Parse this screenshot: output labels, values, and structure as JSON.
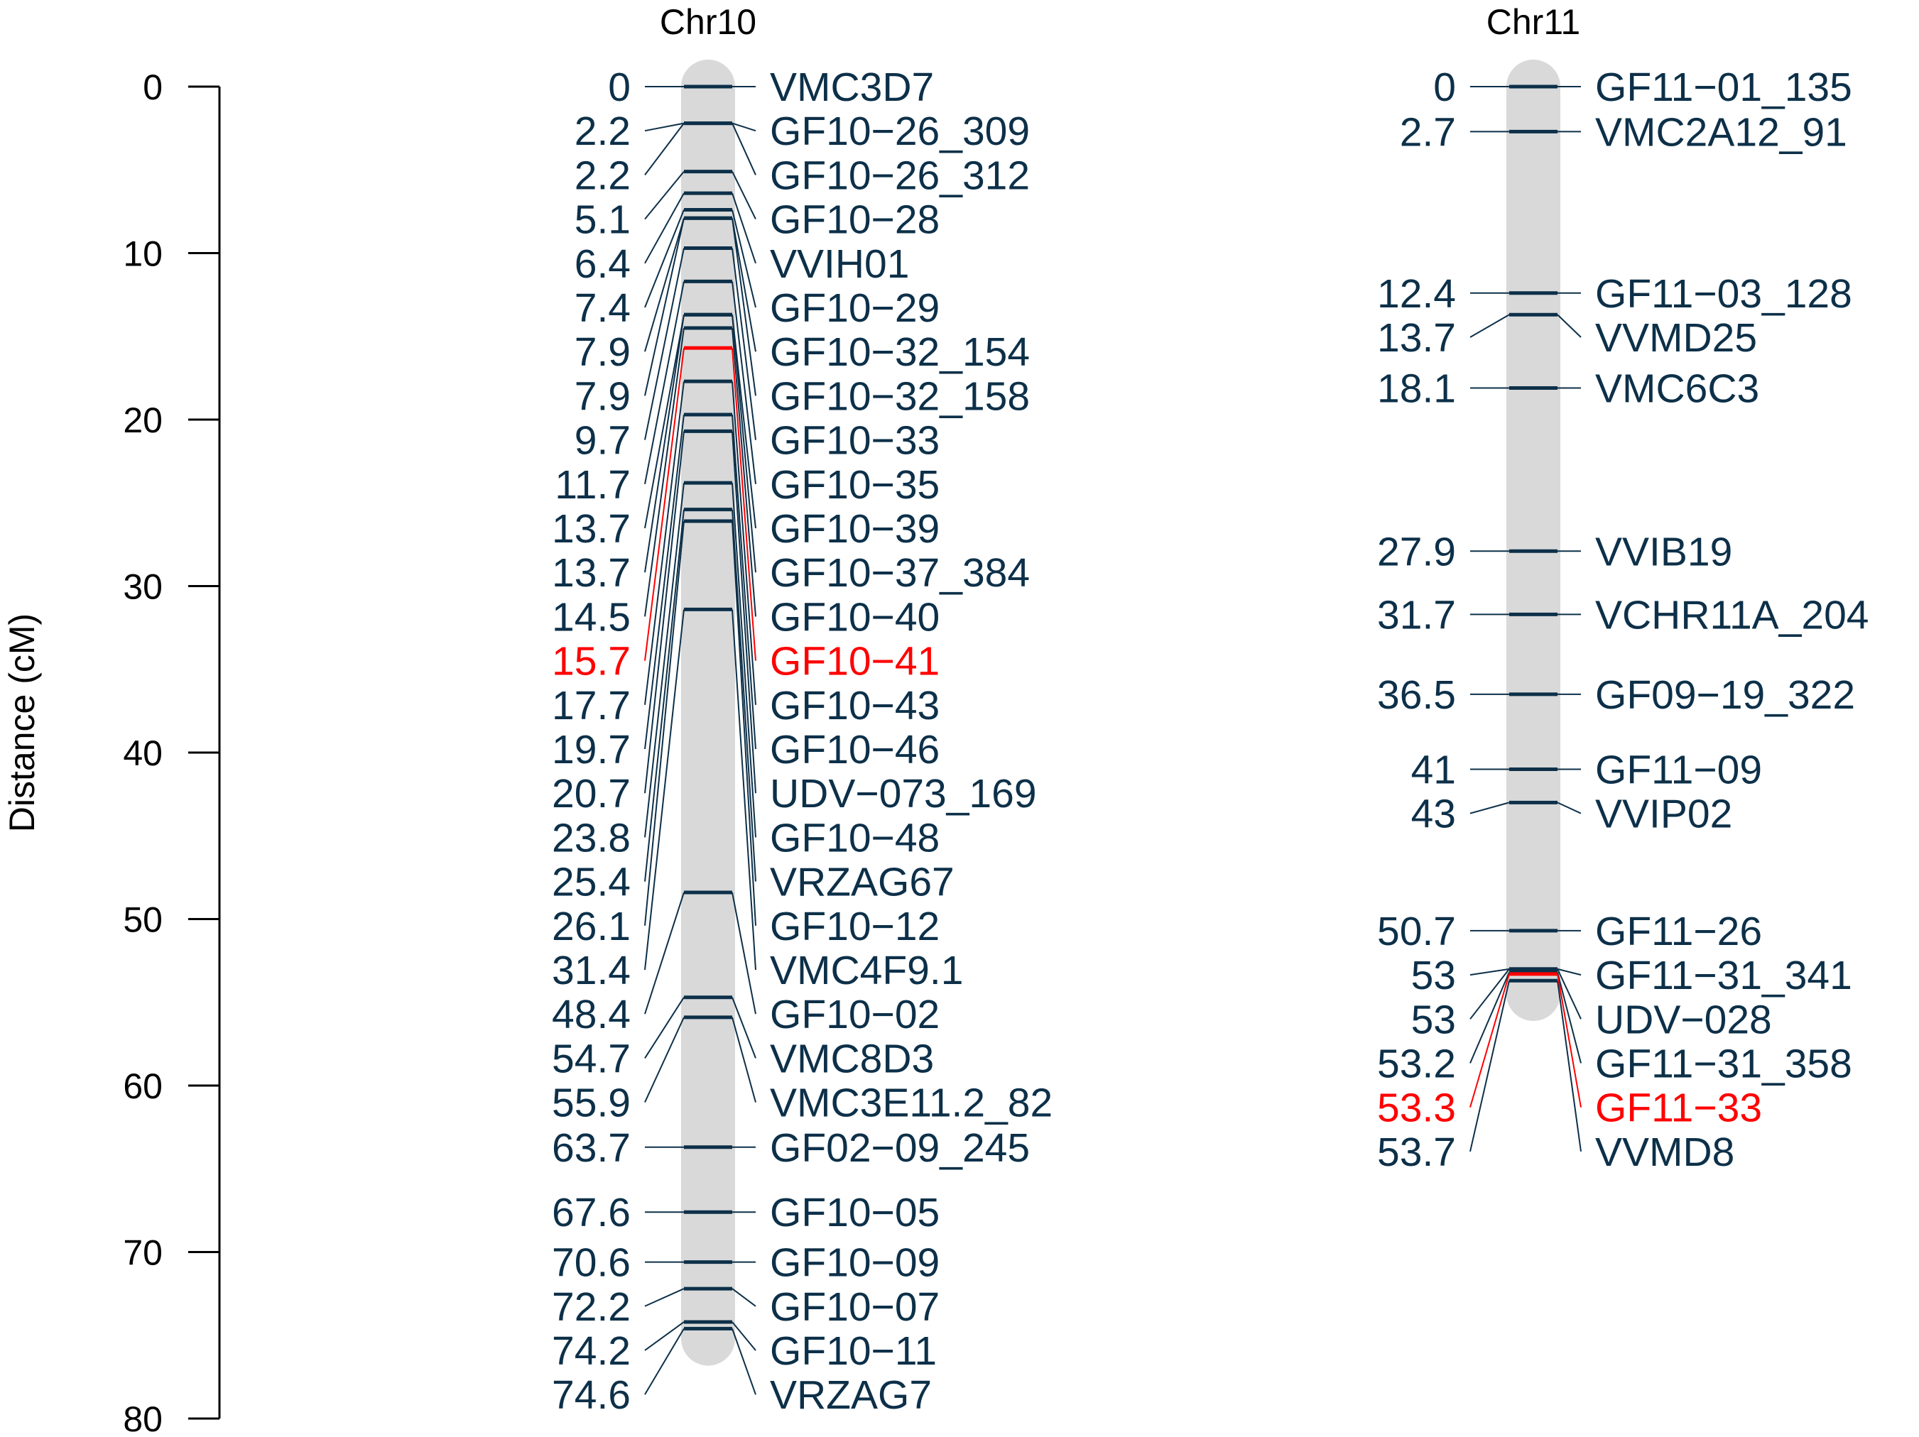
{
  "chart_data": {
    "type": "linkage-map",
    "ylabel": "Distance (cM)",
    "ylim": [
      0,
      80
    ],
    "yticks": [
      0,
      10,
      20,
      30,
      40,
      50,
      60,
      70,
      80
    ],
    "colors": {
      "marker": "#0d3049",
      "highlight": "#ff0000",
      "chromosome": "#d9d9d9",
      "axis": "#000000"
    },
    "chromosomes": [
      {
        "name": "Chr10",
        "length": 75.2,
        "markers": [
          {
            "pos": 0,
            "label": "0",
            "name": "VMC3D7"
          },
          {
            "pos": 2.2,
            "label": "2.2",
            "name": "GF10−26_309"
          },
          {
            "pos": 2.2,
            "label": "2.2",
            "name": "GF10−26_312"
          },
          {
            "pos": 5.1,
            "label": "5.1",
            "name": "GF10−28"
          },
          {
            "pos": 6.4,
            "label": "6.4",
            "name": "VVIH01"
          },
          {
            "pos": 7.4,
            "label": "7.4",
            "name": "GF10−29"
          },
          {
            "pos": 7.9,
            "label": "7.9",
            "name": "GF10−32_154"
          },
          {
            "pos": 7.9,
            "label": "7.9",
            "name": "GF10−32_158"
          },
          {
            "pos": 9.7,
            "label": "9.7",
            "name": "GF10−33"
          },
          {
            "pos": 11.7,
            "label": "11.7",
            "name": "GF10−35"
          },
          {
            "pos": 13.7,
            "label": "13.7",
            "name": "GF10−39"
          },
          {
            "pos": 13.7,
            "label": "13.7",
            "name": "GF10−37_384"
          },
          {
            "pos": 14.5,
            "label": "14.5",
            "name": "GF10−40"
          },
          {
            "pos": 15.7,
            "label": "15.7",
            "name": "GF10−41",
            "highlight": true
          },
          {
            "pos": 17.7,
            "label": "17.7",
            "name": "GF10−43"
          },
          {
            "pos": 19.7,
            "label": "19.7",
            "name": "GF10−46"
          },
          {
            "pos": 20.7,
            "label": "20.7",
            "name": "UDV−073_169"
          },
          {
            "pos": 23.8,
            "label": "23.8",
            "name": "GF10−48"
          },
          {
            "pos": 25.4,
            "label": "25.4",
            "name": "VRZAG67"
          },
          {
            "pos": 26.1,
            "label": "26.1",
            "name": "GF10−12"
          },
          {
            "pos": 31.4,
            "label": "31.4",
            "name": "VMC4F9.1"
          },
          {
            "pos": 48.4,
            "label": "48.4",
            "name": "GF10−02"
          },
          {
            "pos": 54.7,
            "label": "54.7",
            "name": "VMC8D3"
          },
          {
            "pos": 55.9,
            "label": "55.9",
            "name": "VMC3E11.2_82"
          },
          {
            "pos": 63.7,
            "label": "63.7",
            "name": "GF02−09_245"
          },
          {
            "pos": 67.6,
            "label": "67.6",
            "name": "GF10−05"
          },
          {
            "pos": 70.6,
            "label": "70.6",
            "name": "GF10−09"
          },
          {
            "pos": 72.2,
            "label": "72.2",
            "name": "GF10−07"
          },
          {
            "pos": 74.2,
            "label": "74.2",
            "name": "GF10−11"
          },
          {
            "pos": 74.6,
            "label": "74.6",
            "name": "VRZAG7"
          }
        ]
      },
      {
        "name": "Chr11",
        "length": 54.5,
        "markers": [
          {
            "pos": 0,
            "label": "0",
            "name": "GF11−01_135"
          },
          {
            "pos": 2.7,
            "label": "2.7",
            "name": "VMC2A12_91"
          },
          {
            "pos": 12.4,
            "label": "12.4",
            "name": "GF11−03_128"
          },
          {
            "pos": 13.7,
            "label": "13.7",
            "name": "VVMD25"
          },
          {
            "pos": 18.1,
            "label": "18.1",
            "name": "VMC6C3"
          },
          {
            "pos": 27.9,
            "label": "27.9",
            "name": "VVIB19"
          },
          {
            "pos": 31.7,
            "label": "31.7",
            "name": "VCHR11A_204"
          },
          {
            "pos": 36.5,
            "label": "36.5",
            "name": "GF09−19_322"
          },
          {
            "pos": 41,
            "label": "41",
            "name": "GF11−09"
          },
          {
            "pos": 43,
            "label": "43",
            "name": "VVIP02"
          },
          {
            "pos": 50.7,
            "label": "50.7",
            "name": "GF11−26"
          },
          {
            "pos": 53,
            "label": "53",
            "name": "GF11−31_341"
          },
          {
            "pos": 53,
            "label": "53",
            "name": "UDV−028"
          },
          {
            "pos": 53.2,
            "label": "53.2",
            "name": "GF11−31_358"
          },
          {
            "pos": 53.3,
            "label": "53.3",
            "name": "GF11−33",
            "highlight": true
          },
          {
            "pos": 53.7,
            "label": "53.7",
            "name": "VVMD8"
          }
        ]
      }
    ]
  }
}
